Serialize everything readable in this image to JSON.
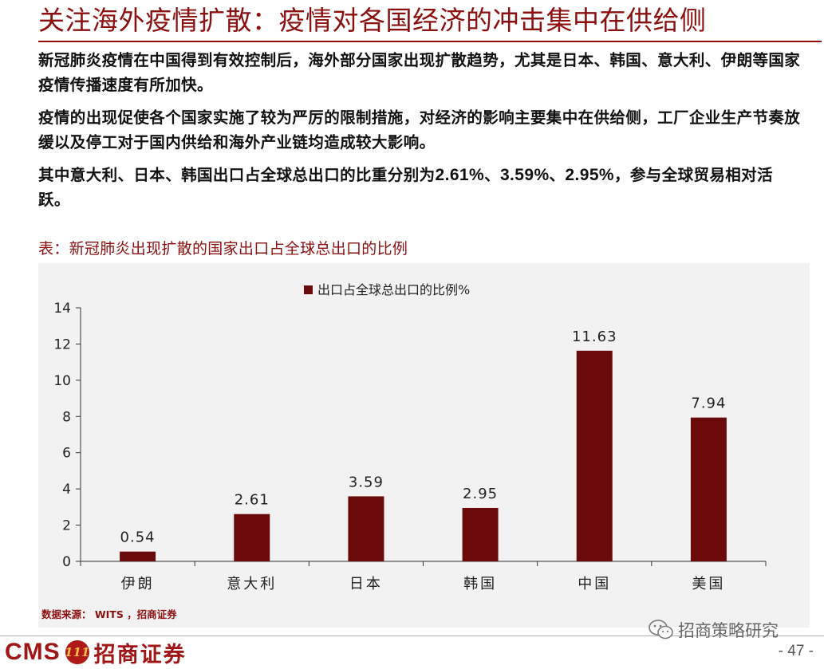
{
  "title": "关注海外疫情扩散：疫情对各国经济的冲击集中在供给侧",
  "paragraphs": {
    "p1": "新冠肺炎疫情在中国得到有效控制后，海外部分国家出现扩散趋势，尤其是日本、韩国、意大利、伊朗等国家疫情传播速度有所加快。",
    "p2": "疫情的出现促使各个国家实施了较为严厉的限制措施，对经济的影响主要集中在供给侧，工厂企业生产节奏放缓以及停工对于国内供给和海外产业链均造成较大影响。",
    "p3_prefix": "其中意大利、日本、韩国出口占全球总出口的比重分别为",
    "p3_v1": "2.61%",
    "p3_sep1": "、",
    "p3_v2": "3.59%",
    "p3_sep2": "、",
    "p3_v3": "2.95%",
    "p3_suffix": "，参与全球贸易相对活跃。"
  },
  "table_caption": "表：新冠肺炎出现扩散的国家出口占全球总出口的比例",
  "source_note": "数据来源： WITS ，招商证券",
  "logo": {
    "cms": "CMS",
    "seal": "111",
    "name": "招商证券"
  },
  "watermark": "招商策略研究",
  "page_number": "- 47 -",
  "colors": {
    "accent": "#8b0f0f",
    "bar": "#6b0a0a",
    "panel": "#f2f2f2"
  },
  "chart_data": {
    "type": "bar",
    "categories": [
      "伊朗",
      "意大利",
      "日本",
      "韩国",
      "中国",
      "美国"
    ],
    "series": [
      {
        "name": "出口占全球总出口的比例%",
        "values": [
          0.54,
          2.61,
          3.59,
          2.95,
          11.63,
          7.94
        ]
      }
    ],
    "data_labels": [
      "0.54",
      "2.61",
      "3.59",
      "2.95",
      "11.63",
      "7.94"
    ],
    "yticks": [
      "0",
      "2",
      "4",
      "6",
      "8",
      "10",
      "12",
      "14"
    ],
    "ylim": [
      0,
      14
    ],
    "grid": false,
    "legend": "top-center"
  }
}
